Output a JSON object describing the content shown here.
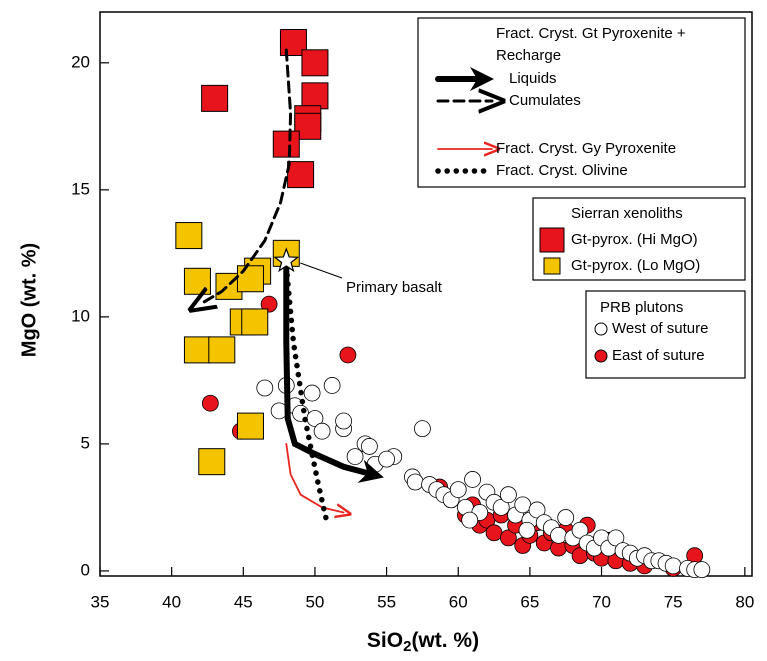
{
  "chart_data": {
    "type": "scatter",
    "xlabel": [
      "SiO",
      "2",
      "(wt. %)"
    ],
    "ylabel": "MgO (wt. %)",
    "xlim": [
      35,
      80.5
    ],
    "ylim": [
      -0.2,
      22
    ],
    "xticks": [
      35,
      40,
      45,
      50,
      55,
      60,
      65,
      70,
      75,
      80
    ],
    "yticks": [
      0,
      5,
      10,
      15,
      20
    ],
    "legend_header": [
      "Fract. Cryst. Gt Pyroxenite +",
      "Recharge"
    ],
    "xenolith_title": "Sierran xenoliths",
    "pluton_title": "PRB plutons",
    "annotation": "Primary basalt",
    "primary_point": {
      "x": 48,
      "y": 12.2
    },
    "curves": [
      {
        "name": "Liquids",
        "color": "#000",
        "style": "solid",
        "x": [
          48,
          48,
          48.1,
          48.6,
          50,
          52,
          54
        ],
        "y": [
          12,
          9,
          6,
          5,
          4.6,
          4.1,
          3.8
        ]
      },
      {
        "name": "Cumulates",
        "color": "#000",
        "style": "dashed",
        "x": [
          48,
          48.3,
          48.2,
          47.6,
          46.5,
          45,
          43.5,
          42
        ],
        "y": [
          20.5,
          18,
          16,
          14.5,
          13,
          11.8,
          11,
          10.5
        ]
      },
      {
        "name": "Fract. Cryst. Gy Pyroxenite",
        "color": "#e8251f",
        "style": "thin",
        "x": [
          48,
          48.3,
          49,
          50.5,
          52
        ],
        "y": [
          5,
          3.8,
          3,
          2.5,
          2.3
        ]
      },
      {
        "name": "Fract. Cryst. Olivine",
        "color": "#000",
        "style": "dotted",
        "x": [
          48,
          48.5,
          49.3,
          50.2,
          50.8
        ],
        "y": [
          12,
          9,
          6,
          3.5,
          2
        ]
      }
    ],
    "series": [
      {
        "name": "Gt-pyrox. (Hi MgO)",
        "marker": "square",
        "color": "#e8141c",
        "x": [
          48.5,
          50,
          43,
          50,
          49.5,
          49.5,
          48,
          49
        ],
        "y": [
          20.8,
          20,
          18.6,
          18.7,
          17.8,
          17.5,
          16.8,
          15.6
        ]
      },
      {
        "name": "Gt-pyrox. (Lo MgO)",
        "marker": "square",
        "color": "#f5c400",
        "x": [
          41.2,
          41.8,
          48,
          44,
          46,
          45.5,
          45,
          45.8,
          41.8,
          43.5,
          45.5,
          42.8
        ],
        "y": [
          13.2,
          11.4,
          12.5,
          11.2,
          11.8,
          11.5,
          9.8,
          9.8,
          8.7,
          8.7,
          5.7,
          4.3
        ]
      },
      {
        "name": "West of suture",
        "marker": "circle",
        "color": "#ffffff",
        "x": [
          46.5,
          48,
          47.5,
          48.6,
          49,
          49.8,
          50,
          50.5,
          51.2,
          52,
          52.8,
          53.5,
          53.8,
          54.2,
          55.5,
          57.5,
          56.8,
          57,
          58,
          58.5,
          59,
          59.5,
          60,
          60.5,
          61,
          61.5,
          62,
          62.5,
          63,
          63.5,
          64,
          64.5,
          65,
          65.5,
          66,
          66.5,
          67,
          67.5,
          68,
          68.5,
          69,
          69.5,
          70,
          70.5,
          71,
          71.5,
          72,
          72.5,
          73,
          73.5,
          74,
          74.5,
          75,
          76,
          76.5,
          77,
          52,
          55,
          60.8,
          64.8
        ],
        "y": [
          7.2,
          7.3,
          6.3,
          6.5,
          6.2,
          7,
          6,
          5.5,
          7.3,
          5.6,
          4.5,
          5,
          4.9,
          4.2,
          4.5,
          5.6,
          3.7,
          3.5,
          3.4,
          3.2,
          3,
          2.8,
          3.2,
          2.5,
          3.6,
          2.3,
          3.1,
          2.7,
          2.5,
          3,
          2.2,
          2.6,
          2,
          2.4,
          1.9,
          1.7,
          1.4,
          2.1,
          1.3,
          1.6,
          1.1,
          0.9,
          1.3,
          0.9,
          1.3,
          0.8,
          0.7,
          0.5,
          0.6,
          0.4,
          0.4,
          0.3,
          0.2,
          0.1,
          0.05,
          0.05,
          5.9,
          4.4,
          2,
          1.6
        ]
      },
      {
        "name": "East of suture",
        "marker": "circle",
        "color": "#e8141c",
        "x": [
          46.8,
          52.3,
          42.7,
          44.8,
          59.5,
          60.5,
          61,
          61.5,
          62,
          62.5,
          63,
          63.5,
          64,
          64.5,
          65,
          65.5,
          66,
          66.5,
          67,
          67.5,
          68,
          68.5,
          69,
          69.5,
          70,
          70.5,
          71,
          72,
          73,
          75,
          76.5,
          58.7
        ],
        "y": [
          10.5,
          8.5,
          6.6,
          5.5,
          2.8,
          2.2,
          2.6,
          1.8,
          2,
          1.5,
          2.2,
          1.3,
          1.8,
          1,
          1.4,
          1.9,
          1.1,
          1.5,
          0.9,
          1.6,
          1,
          0.6,
          1.8,
          0.7,
          0.5,
          1.2,
          0.4,
          0.3,
          0.2,
          0.1,
          0.6,
          3.3
        ]
      }
    ]
  }
}
